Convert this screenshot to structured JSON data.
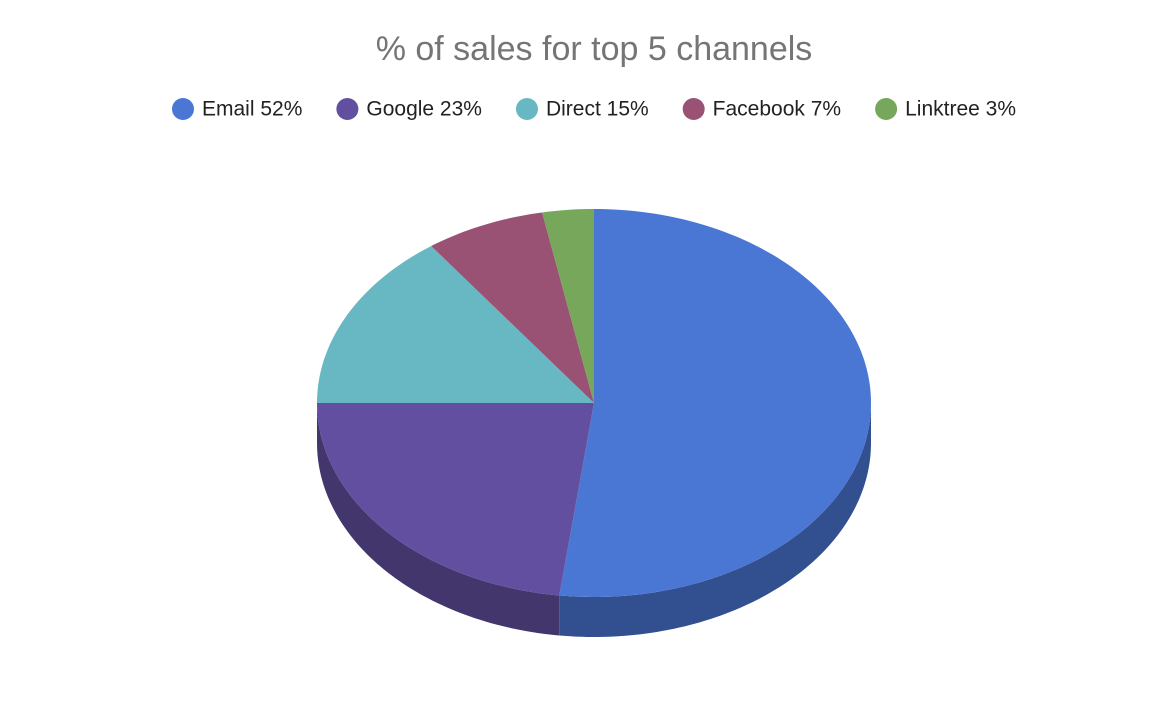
{
  "chart_data": {
    "type": "pie",
    "title": "% of sales for top 5 channels",
    "categories": [
      "Email 52%",
      "Google 23%",
      "Direct 15%",
      "Facebook 7%",
      "Linktree 3%"
    ],
    "values": [
      52,
      23,
      15,
      7,
      3
    ],
    "colors": [
      "#4a76d4",
      "#624fa0",
      "#68b8c4",
      "#9a5274",
      "#76a75a"
    ],
    "legend": "top",
    "three_d": true
  }
}
